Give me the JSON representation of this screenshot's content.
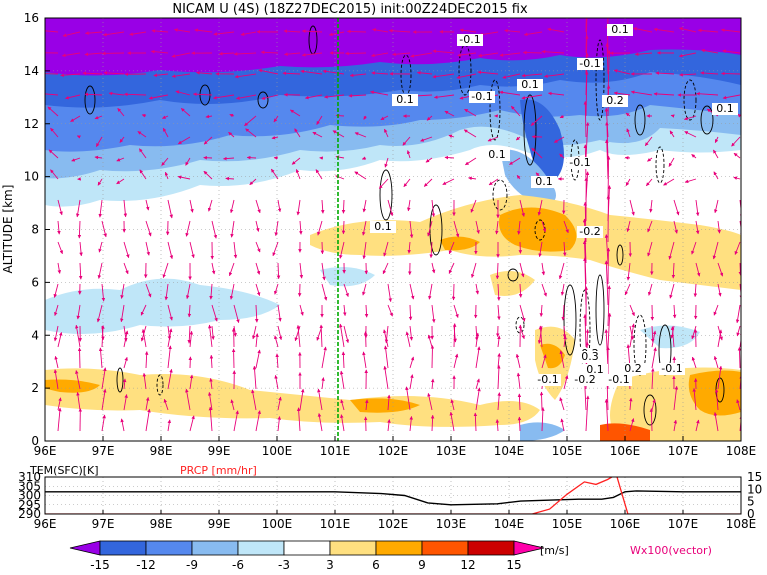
{
  "title": "NICAM U (4S) (18Z27DEC2015) init:00Z24DEC2015 fix",
  "main_plot": {
    "ylabel": "ALTITUDE [km]",
    "x_ticks": [
      "96E",
      "97E",
      "98E",
      "99E",
      "100E",
      "101E",
      "102E",
      "103E",
      "104E",
      "105E",
      "106E",
      "107E",
      "108E"
    ],
    "y_ticks": [
      "0",
      "2",
      "4",
      "6",
      "8",
      "10",
      "12",
      "14",
      "16"
    ],
    "contour_labels": [
      "-0.1",
      "0.1",
      "-0.1",
      "0.1",
      "-0.1",
      "0.1",
      "0.2",
      "0.1",
      "0.1",
      "0.1",
      "-0.1",
      "0.1",
      "-0.2",
      "-0.2",
      "0.1",
      "0.3",
      "-0.1",
      "-0.2",
      "-0.1",
      "0.2",
      "-0.1"
    ],
    "reference_line": "101E"
  },
  "sub_plot": {
    "left_label": "TEM(SFC)[K]",
    "right_label": "PRCP [mm/hr]",
    "left_ticks": [
      "310",
      "305",
      "300",
      "295",
      "290"
    ],
    "right_ticks": [
      "15",
      "10",
      "5",
      "0"
    ],
    "x_ticks": [
      "96E",
      "97E",
      "98E",
      "99E",
      "100E",
      "101E",
      "102E",
      "103E",
      "104E",
      "105E",
      "106E",
      "107E",
      "108E"
    ]
  },
  "colorbar": {
    "ticks": [
      "-15",
      "-12",
      "-9",
      "-6",
      "-3",
      "3",
      "6",
      "9",
      "12",
      "15"
    ],
    "unit": "[m/s]",
    "vector_label": "Wx100(vector)",
    "colors": [
      "#9900e6",
      "#3366dd",
      "#5588ee",
      "#88bbf0",
      "#bfe6f8",
      "#ffffff",
      "#ffe080",
      "#ffaa00",
      "#ff5500",
      "#cc0000",
      "#ff00aa"
    ]
  },
  "colors": {
    "vector": "#e8007a",
    "ref_line": "#00aa00",
    "prcp": "#ff2222",
    "tem": "#000000"
  },
  "chart_data": [
    {
      "type": "heatmap",
      "title": "NICAM U (4S) (18Z27DEC2015) init:00Z24DEC2015 fix",
      "xlabel": "",
      "ylabel": "ALTITUDE [km]",
      "xlim": [
        96,
        108
      ],
      "ylim": [
        0,
        16
      ],
      "units": "m/s",
      "value_levels": [
        -15,
        -12,
        -9,
        -6,
        -3,
        3,
        6,
        9,
        12,
        15
      ],
      "regions": [
        {
          "x": [
            96,
            108
          ],
          "y": [
            14.5,
            16
          ],
          "value": -15
        },
        {
          "x": [
            96,
            108
          ],
          "y": [
            12.5,
            14.5
          ],
          "value": -12
        },
        {
          "x": [
            96,
            108
          ],
          "y": [
            11,
            12.5
          ],
          "value": -9
        },
        {
          "x": [
            96,
            104.5
          ],
          "y": [
            9.5,
            11
          ],
          "value": -6
        },
        {
          "x": [
            96,
            101
          ],
          "y": [
            8.7,
            9.5
          ],
          "value": -3
        },
        {
          "x": [
            101.5,
            108
          ],
          "y": [
            6.5,
            8.3
          ],
          "value": 3
        },
        {
          "x": [
            104,
            105.2
          ],
          "y": [
            7,
            8.3
          ],
          "value": 6
        },
        {
          "x": [
            96,
            100.5
          ],
          "y": [
            4,
            6
          ],
          "value": -3
        },
        {
          "x": [
            96,
            104
          ],
          "y": [
            1.5,
            3
          ],
          "value": 3
        },
        {
          "x": [
            106,
            108
          ],
          "y": [
            0.2,
            3
          ],
          "value": 6
        }
      ]
    },
    {
      "type": "line",
      "xlim": [
        96,
        108
      ],
      "series": [
        {
          "name": "TEM(SFC)[K]",
          "axis": "left",
          "ylim": [
            290,
            310
          ],
          "x": [
            96,
            100,
            101,
            101.8,
            102.2,
            102.6,
            103,
            103.8,
            104.2,
            105.2,
            105.6,
            105.8,
            106,
            106.2,
            107,
            108
          ],
          "values": [
            302,
            302,
            302,
            301,
            300,
            296,
            295,
            295.5,
            297,
            298,
            298,
            299,
            302,
            302.5,
            302,
            302
          ]
        },
        {
          "name": "PRCP [mm/hr]",
          "axis": "right",
          "ylim": [
            0,
            15
          ],
          "x": [
            96,
            104.4,
            104.7,
            105,
            105.3,
            105.5,
            105.7,
            105.85,
            105.95,
            106.05,
            108
          ],
          "values": [
            0,
            0,
            2,
            8,
            13,
            12,
            14,
            16,
            8,
            0,
            0
          ]
        }
      ]
    }
  ]
}
